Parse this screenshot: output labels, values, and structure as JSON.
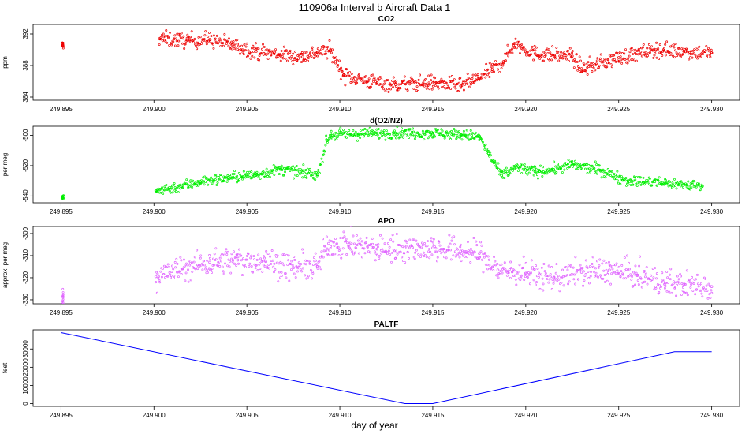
{
  "figure": {
    "title": "110906a   Interval b Aircraft Data 1",
    "xlabel": "day of year"
  },
  "chart_data": [
    {
      "type": "scatter",
      "title": "CO2",
      "ylabel": "ppm",
      "color": "#ee0000",
      "xlim": [
        249.8935,
        249.9315
      ],
      "ylim": [
        383.6,
        393.2
      ],
      "xticks": [
        "249.895",
        "249.900",
        "249.905",
        "249.910",
        "249.915",
        "249.920",
        "249.925",
        "249.930"
      ],
      "yticks": [
        "384",
        "388",
        "392"
      ],
      "series": [
        {
          "name": "CO2",
          "x": [
            249.8951,
            249.9003,
            249.9018,
            249.903,
            249.9042,
            249.9055,
            249.9068,
            249.908,
            249.9088,
            249.9095,
            249.9102,
            249.9115,
            249.913,
            249.915,
            249.9165,
            249.9175,
            249.9182,
            249.9188,
            249.9194,
            249.9205,
            249.9225,
            249.923,
            249.925,
            249.927,
            249.9285,
            249.93
          ],
          "values": [
            390.6,
            391.4,
            391.2,
            391.3,
            390.6,
            389.8,
            389.4,
            389.1,
            389.7,
            389.9,
            386.8,
            386.0,
            385.6,
            385.8,
            385.4,
            386.4,
            387.5,
            388.5,
            390.8,
            389.5,
            389.2,
            387.6,
            389.0,
            390.0,
            389.8,
            389.6
          ]
        }
      ]
    },
    {
      "type": "scatter",
      "title": "d(O2/N2)",
      "ylabel": "per meg",
      "color": "#00ee00",
      "xlim": [
        249.8935,
        249.9315
      ],
      "ylim": [
        -544.5,
        -494
      ],
      "xticks": [
        "249.895",
        "249.900",
        "249.905",
        "249.910",
        "249.915",
        "249.920",
        "249.925",
        "249.930"
      ],
      "yticks": [
        "-540",
        "-520",
        "-500"
      ],
      "series": [
        {
          "name": "d(O2/N2)",
          "x": [
            249.8951,
            249.9001,
            249.9015,
            249.9025,
            249.904,
            249.9055,
            249.9068,
            249.908,
            249.9088,
            249.9093,
            249.9095,
            249.911,
            249.913,
            249.915,
            249.9165,
            249.9175,
            249.918,
            249.9187,
            249.9195,
            249.9205,
            249.9215,
            249.9225,
            249.924,
            249.9255,
            249.9275,
            249.9295
          ],
          "values": [
            -541.0,
            -536.5,
            -533.5,
            -530.5,
            -528.0,
            -526.0,
            -522.5,
            -524.5,
            -526.0,
            -503.5,
            -500.0,
            -499.0,
            -498.5,
            -498.5,
            -499.5,
            -501.0,
            -512.0,
            -526.5,
            -521.0,
            -524.0,
            -522.5,
            -519.5,
            -523.0,
            -530.0,
            -531.5,
            -533.5
          ]
        }
      ]
    },
    {
      "type": "scatter",
      "title": "APO",
      "ylabel": "approx. per meg",
      "color": "#e066ff",
      "xlim": [
        249.8935,
        249.9315
      ],
      "ylim": [
        -331.8,
        -296.8
      ],
      "xticks": [
        "249.895",
        "249.900",
        "249.905",
        "249.910",
        "249.915",
        "249.920",
        "249.925",
        "249.930"
      ],
      "yticks": [
        "-330",
        "-320",
        "-310",
        "-300"
      ],
      "series": [
        {
          "name": "APO",
          "x": [
            249.8951,
            249.9001,
            249.9015,
            249.903,
            249.9045,
            249.906,
            249.9075,
            249.9088,
            249.9094,
            249.9105,
            249.912,
            249.9135,
            249.915,
            249.9165,
            249.9175,
            249.9185,
            249.92,
            249.9215,
            249.923,
            249.9245,
            249.926,
            249.9275,
            249.9285,
            249.93
          ],
          "values": [
            -328.5,
            -319.5,
            -316.0,
            -313.0,
            -312.0,
            -312.5,
            -315.5,
            -315.0,
            -304.5,
            -305.0,
            -307.0,
            -306.5,
            -306.5,
            -308.0,
            -309.0,
            -316.5,
            -318.0,
            -320.0,
            -317.5,
            -316.5,
            -319.0,
            -322.5,
            -323.0,
            -324.0
          ]
        }
      ]
    },
    {
      "type": "line",
      "title": "PALTF",
      "ylabel": "feet",
      "color": "#0000ff",
      "xlim": [
        249.8935,
        249.9315
      ],
      "ylim": [
        -1500,
        40500
      ],
      "xticks": [
        "249.895",
        "249.900",
        "249.905",
        "249.910",
        "249.915",
        "249.920",
        "249.925",
        "249.930"
      ],
      "yticks": [
        "0",
        "10000",
        "20000",
        "30000"
      ],
      "series": [
        {
          "name": "PALTF",
          "x": [
            249.895,
            249.9135,
            249.915,
            249.928,
            249.93
          ],
          "values": [
            39000,
            0,
            0,
            28500,
            28500
          ]
        }
      ]
    }
  ]
}
